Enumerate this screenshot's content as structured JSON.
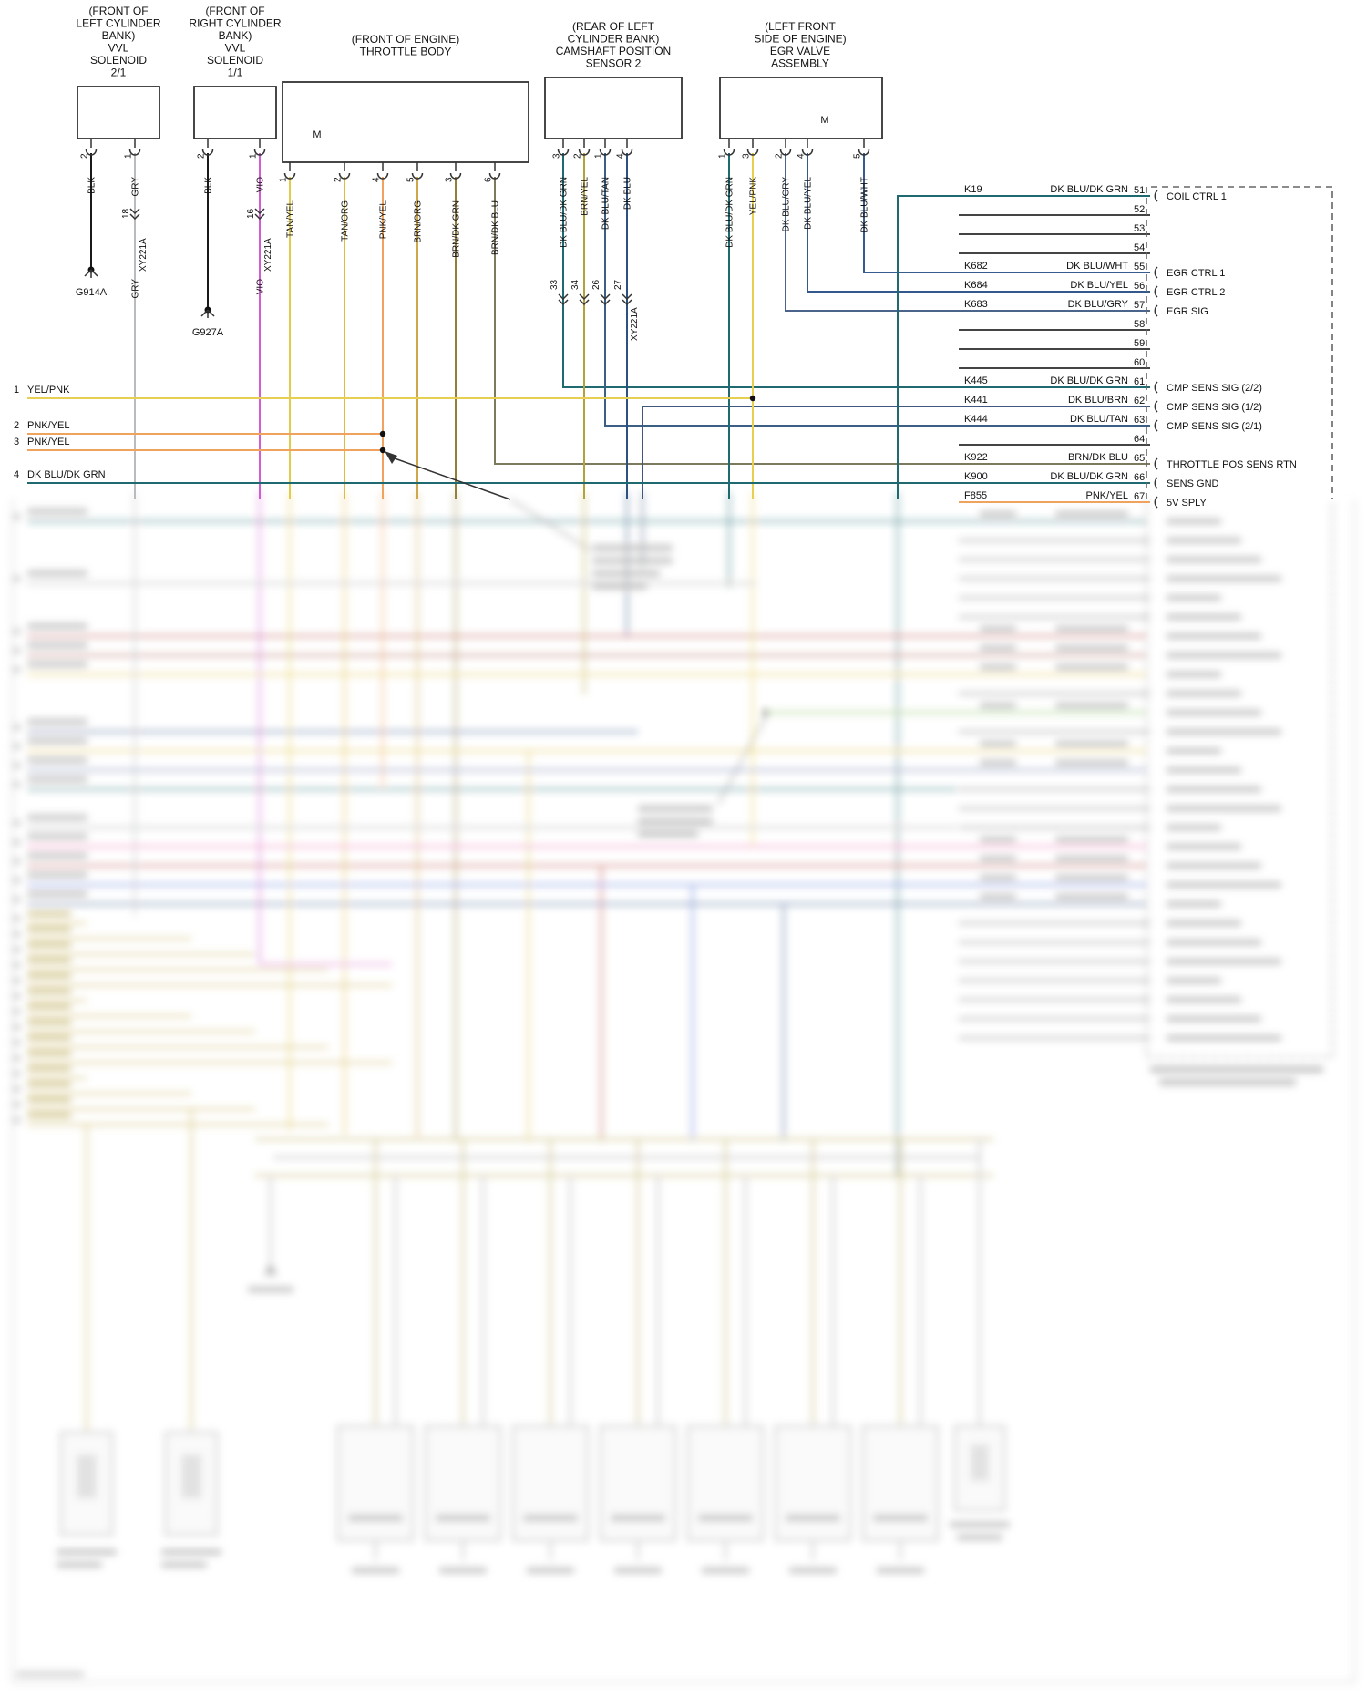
{
  "components": [
    {
      "id": "vvl-solenoid-2-1",
      "label_lines": [
        "(FRONT OF",
        "LEFT CYLINDER",
        "BANK)",
        "VVL",
        "SOLENOID",
        "2/1"
      ],
      "pins": [
        {
          "pin": "2",
          "wire": "BLK"
        },
        {
          "pin": "1",
          "wire": "GRY"
        }
      ],
      "inline_connector": {
        "cavity": "18",
        "connector": "XY221A"
      },
      "wire_after_connector": "GRY",
      "ground": "G914A"
    },
    {
      "id": "vvl-solenoid-1-1",
      "label_lines": [
        "(FRONT OF",
        "RIGHT CYLINDER",
        "BANK)",
        "VVL",
        "SOLENOID",
        "1/1"
      ],
      "pins": [
        {
          "pin": "2",
          "wire": "BLK"
        },
        {
          "pin": "1",
          "wire": "VIO"
        }
      ],
      "inline_connector": {
        "cavity": "16",
        "connector": "XY221A"
      },
      "wire_after_connector": "VIO",
      "ground": "G927A"
    },
    {
      "id": "throttle-body",
      "label_lines": [
        "(FRONT OF ENGINE)",
        "THROTTLE BODY"
      ],
      "motor_label": "M",
      "pins": [
        {
          "pin": "1",
          "wire": "TAN/YEL"
        },
        {
          "pin": "2",
          "wire": "TAN/ORG"
        },
        {
          "pin": "4",
          "wire": "PNK/YEL"
        },
        {
          "pin": "5",
          "wire": "BRN/ORG"
        },
        {
          "pin": "3",
          "wire": "BRN/DK GRN"
        },
        {
          "pin": "6",
          "wire": "BRN/DK BLU"
        }
      ]
    },
    {
      "id": "camshaft-position-sensor-2",
      "label_lines": [
        "(REAR OF LEFT",
        "CYLINDER BANK)",
        "CAMSHAFT POSITION",
        "SENSOR 2"
      ],
      "pins": [
        {
          "pin": "3",
          "wire": "DK BLU/DK GRN"
        },
        {
          "pin": "2",
          "wire": "BRN/YEL"
        },
        {
          "pin": "1",
          "wire": "DK BLU/TAN"
        },
        {
          "pin": "4",
          "wire": "DK BLU"
        }
      ],
      "inline_connector": {
        "cavities": [
          "33",
          "34",
          "26",
          "27"
        ],
        "connector": "XY221A"
      }
    },
    {
      "id": "egr-valve-assembly",
      "label_lines": [
        "(LEFT FRONT",
        "SIDE OF ENGINE)",
        "EGR VALVE",
        "ASSEMBLY"
      ],
      "motor_label": "M",
      "pins": [
        {
          "pin": "1",
          "wire": "DK BLU/DK GRN"
        },
        {
          "pin": "3",
          "wire": "YEL/PNK"
        },
        {
          "pin": "2",
          "wire": "DK BLU/GRY"
        },
        {
          "pin": "4",
          "wire": "DK BLU/YEL"
        },
        {
          "pin": "5",
          "wire": "DK BLU/WHT"
        }
      ]
    }
  ],
  "left_wires": [
    {
      "num": "1",
      "wire": "YEL/PNK"
    },
    {
      "num": "2",
      "wire": "PNK/YEL"
    },
    {
      "num": "3",
      "wire": "PNK/YEL"
    },
    {
      "num": "4",
      "wire": "DK BLU/DK GRN"
    }
  ],
  "pcm": {
    "rows": [
      {
        "circuit": "K19",
        "color": "DK BLU/DK GRN",
        "pin": "51",
        "signal": "COIL CTRL 1"
      },
      {
        "pin": "52"
      },
      {
        "pin": "53"
      },
      {
        "pin": "54"
      },
      {
        "circuit": "K682",
        "color": "DK BLU/WHT",
        "pin": "55",
        "signal": "EGR CTRL 1"
      },
      {
        "circuit": "K684",
        "color": "DK BLU/YEL",
        "pin": "56",
        "signal": "EGR CTRL 2"
      },
      {
        "circuit": "K683",
        "color": "DK BLU/GRY",
        "pin": "57",
        "signal": "EGR SIG"
      },
      {
        "pin": "58"
      },
      {
        "pin": "59"
      },
      {
        "pin": "60"
      },
      {
        "circuit": "K445",
        "color": "DK BLU/DK GRN",
        "pin": "61",
        "signal": "CMP SENS SIG (2/2)"
      },
      {
        "circuit": "K441",
        "color": "DK BLU/BRN",
        "pin": "62",
        "signal": "CMP SENS SIG (1/2)"
      },
      {
        "circuit": "K444",
        "color": "DK BLU/TAN",
        "pin": "63",
        "signal": "CMP SENS SIG (2/1)"
      },
      {
        "pin": "64"
      },
      {
        "circuit": "K922",
        "color": "BRN/DK BLU",
        "pin": "65",
        "signal": "THROTTLE POS SENS RTN"
      },
      {
        "circuit": "K900",
        "color": "DK BLU/DK GRN",
        "pin": "66",
        "signal": "SENS GND"
      },
      {
        "circuit": "F855",
        "color": "PNK/YEL",
        "pin": "67",
        "signal": "5V SPLY"
      }
    ]
  },
  "wire_colors": {
    "BLK": "#1a1a1a",
    "GRY": "#b9bcbf",
    "VIO": "#d35bd3",
    "TAN/YEL": "#e3cb4b",
    "TAN/ORG": "#e0ba41",
    "PNK/YEL": "#f0a35e",
    "BRN/ORG": "#cfa74d",
    "BRN/DK GRN": "#92803a",
    "BRN/DK BLU": "#7c7a5e",
    "DK BLU/DK GRN": "#1f6a70",
    "BRN/YEL": "#b2a23a",
    "DK BLU/TAN": "#3c5f86",
    "DK BLU": "#2c5181",
    "DK BLU/GRY": "#4a648c",
    "DK BLU/YEL": "#32588c",
    "DK BLU/WHT": "#385c8e",
    "DK BLU/BRN": "#41587e",
    "YEL/PNK": "#e7cf52"
  }
}
